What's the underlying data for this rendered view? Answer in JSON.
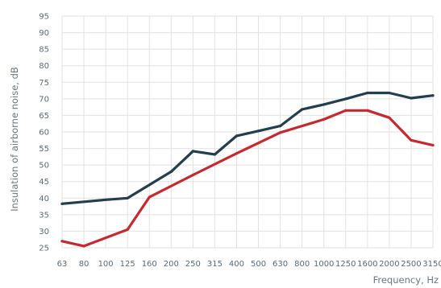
{
  "chart_data": {
    "type": "line",
    "xlabel": "Frequency, Hz",
    "ylabel": "Insulation of airborne noise, dB",
    "categories": [
      "63",
      "80",
      "100",
      "125",
      "160",
      "200",
      "250",
      "315",
      "400",
      "500",
      "630",
      "800",
      "1000",
      "1250",
      "1600",
      "2000",
      "2500",
      "3150"
    ],
    "yticks": [
      "95",
      "90",
      "85",
      "80",
      "75",
      "70",
      "65",
      "60",
      "55",
      "50",
      "45",
      "40",
      "35",
      "30",
      "25"
    ],
    "ylim": [
      25,
      95
    ],
    "grid": true,
    "series": [
      {
        "color": "#233f4f",
        "values": [
          null,
          null,
          null,
          null,
          null,
          null,
          null,
          null,
          null,
          null,
          null,
          null,
          null,
          null,
          null,
          null,
          null,
          null
        ],
        "points": [
          [
            0,
            38.3
          ],
          [
            2,
            39.5
          ],
          [
            3,
            40.0
          ],
          [
            5,
            48.0
          ],
          [
            6,
            54.2
          ],
          [
            7,
            53.2
          ],
          [
            8,
            58.8
          ],
          [
            9,
            60.3
          ],
          [
            10,
            61.8
          ],
          [
            11,
            66.8
          ],
          [
            12,
            68.3
          ],
          [
            13,
            70.0
          ],
          [
            14,
            71.8
          ],
          [
            15,
            71.8
          ],
          [
            16,
            70.2
          ],
          [
            17,
            71.0
          ]
        ]
      },
      {
        "color": "#c8282e",
        "values": [
          null,
          null,
          null,
          null,
          null,
          null,
          null,
          null,
          null,
          null,
          null,
          null,
          null,
          null,
          null,
          null,
          null,
          null
        ],
        "points": [
          [
            0,
            27.0
          ],
          [
            1,
            25.5
          ],
          [
            3,
            30.5
          ],
          [
            4,
            40.3
          ],
          [
            6,
            47.0
          ],
          [
            8,
            53.5
          ],
          [
            10,
            59.8
          ],
          [
            12,
            63.8
          ],
          [
            13,
            66.5
          ],
          [
            14,
            66.5
          ],
          [
            15,
            64.3
          ],
          [
            16,
            57.5
          ],
          [
            17,
            56.0
          ]
        ]
      }
    ]
  }
}
